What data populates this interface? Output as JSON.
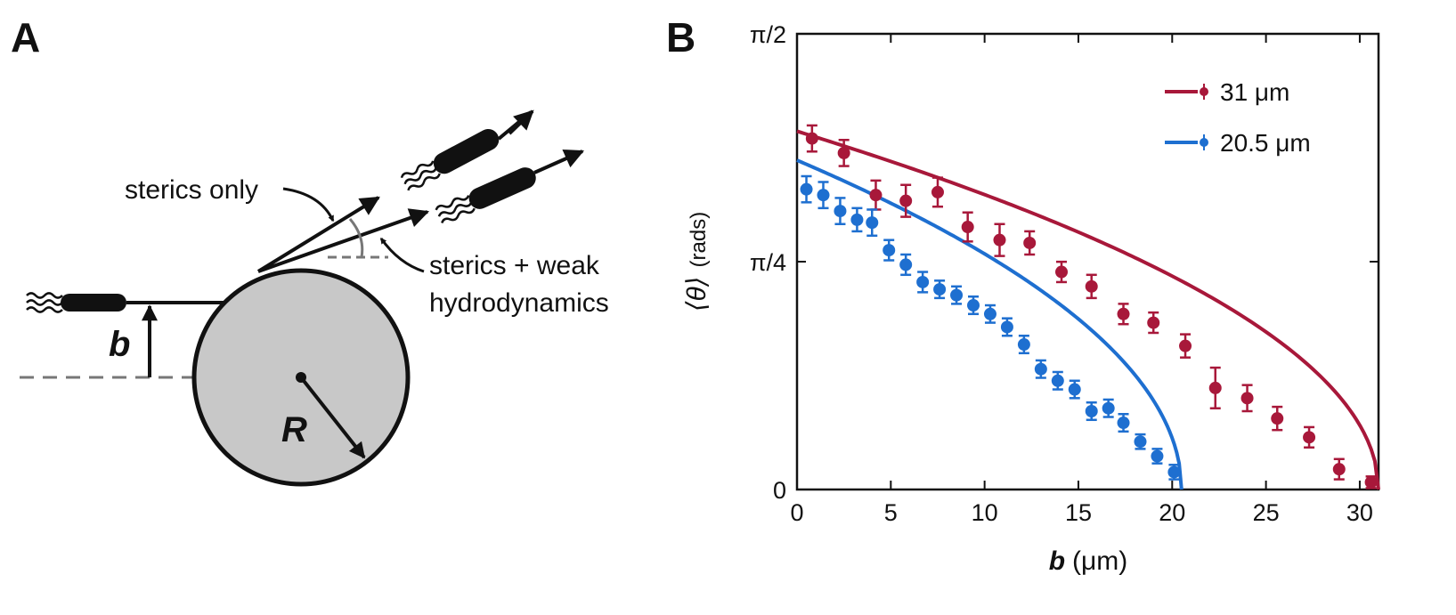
{
  "panel_a": {
    "label": "A",
    "annotation_sterics_only": "sterics only",
    "annotation_weak_line1": "sterics + weak",
    "annotation_weak_line2": "hydrodynamics",
    "symbol_b": "b",
    "symbol_R": "R",
    "colors": {
      "obstacle_fill": "#c8c8c8",
      "ink": "#111111",
      "dashed": "#777777"
    },
    "icons": [
      "bacterium-icon",
      "arrow-icon",
      "angle-arc-icon",
      "radius-arrow-icon"
    ]
  },
  "panel_b": {
    "label": "B",
    "chart_data": {
      "type": "scatter",
      "xlabel_symbol": "b",
      "xlabel_unit": "(μm)",
      "ylabel_symbol": "⟨θ⟩",
      "ylabel_unit": "(rads)",
      "xlim": [
        0,
        31
      ],
      "ylim": [
        0,
        1.5708
      ],
      "xticks": [
        0,
        5,
        10,
        15,
        20,
        25,
        30
      ],
      "yticks": [
        {
          "value": 0,
          "label": "0"
        },
        {
          "value": 0.7854,
          "label": "π/4"
        },
        {
          "value": 1.5708,
          "label": "π/2"
        }
      ],
      "legend_position": "top-right",
      "series": [
        {
          "name": "31 μm",
          "color": "#a8183a",
          "R": 31,
          "points": [
            {
              "x": 0.8,
              "y": 1.21,
              "err": 0.045
            },
            {
              "x": 2.5,
              "y": 1.16,
              "err": 0.045
            },
            {
              "x": 4.2,
              "y": 1.015,
              "err": 0.05
            },
            {
              "x": 5.8,
              "y": 0.995,
              "err": 0.055
            },
            {
              "x": 7.5,
              "y": 1.025,
              "err": 0.05
            },
            {
              "x": 9.1,
              "y": 0.905,
              "err": 0.05
            },
            {
              "x": 10.8,
              "y": 0.86,
              "err": 0.055
            },
            {
              "x": 12.4,
              "y": 0.85,
              "err": 0.04
            },
            {
              "x": 14.1,
              "y": 0.75,
              "err": 0.035
            },
            {
              "x": 15.7,
              "y": 0.7,
              "err": 0.04
            },
            {
              "x": 17.4,
              "y": 0.605,
              "err": 0.035
            },
            {
              "x": 19.0,
              "y": 0.575,
              "err": 0.035
            },
            {
              "x": 20.7,
              "y": 0.495,
              "err": 0.04
            },
            {
              "x": 22.3,
              "y": 0.35,
              "err": 0.07
            },
            {
              "x": 24.0,
              "y": 0.315,
              "err": 0.045
            },
            {
              "x": 25.6,
              "y": 0.245,
              "err": 0.04
            },
            {
              "x": 27.3,
              "y": 0.18,
              "err": 0.035
            },
            {
              "x": 28.9,
              "y": 0.07,
              "err": 0.035
            },
            {
              "x": 30.6,
              "y": 0.025,
              "err": 0.02
            }
          ]
        },
        {
          "name": "20.5 μm",
          "color": "#1e6fd0",
          "R": 20.5,
          "points": [
            {
              "x": 0.5,
              "y": 1.035,
              "err": 0.045
            },
            {
              "x": 1.4,
              "y": 1.015,
              "err": 0.045
            },
            {
              "x": 2.3,
              "y": 0.96,
              "err": 0.045
            },
            {
              "x": 3.2,
              "y": 0.93,
              "err": 0.04
            },
            {
              "x": 4.0,
              "y": 0.92,
              "err": 0.045
            },
            {
              "x": 4.9,
              "y": 0.825,
              "err": 0.035
            },
            {
              "x": 5.8,
              "y": 0.775,
              "err": 0.035
            },
            {
              "x": 6.7,
              "y": 0.715,
              "err": 0.035
            },
            {
              "x": 7.6,
              "y": 0.69,
              "err": 0.03
            },
            {
              "x": 8.5,
              "y": 0.67,
              "err": 0.03
            },
            {
              "x": 9.4,
              "y": 0.635,
              "err": 0.03
            },
            {
              "x": 10.3,
              "y": 0.605,
              "err": 0.03
            },
            {
              "x": 11.2,
              "y": 0.56,
              "err": 0.03
            },
            {
              "x": 12.1,
              "y": 0.5,
              "err": 0.03
            },
            {
              "x": 13.0,
              "y": 0.415,
              "err": 0.03
            },
            {
              "x": 13.9,
              "y": 0.375,
              "err": 0.03
            },
            {
              "x": 14.8,
              "y": 0.345,
              "err": 0.03
            },
            {
              "x": 15.7,
              "y": 0.27,
              "err": 0.03
            },
            {
              "x": 16.6,
              "y": 0.28,
              "err": 0.03
            },
            {
              "x": 17.4,
              "y": 0.23,
              "err": 0.03
            },
            {
              "x": 18.3,
              "y": 0.165,
              "err": 0.025
            },
            {
              "x": 19.2,
              "y": 0.115,
              "err": 0.025
            },
            {
              "x": 20.1,
              "y": 0.06,
              "err": 0.025
            }
          ]
        }
      ]
    }
  }
}
